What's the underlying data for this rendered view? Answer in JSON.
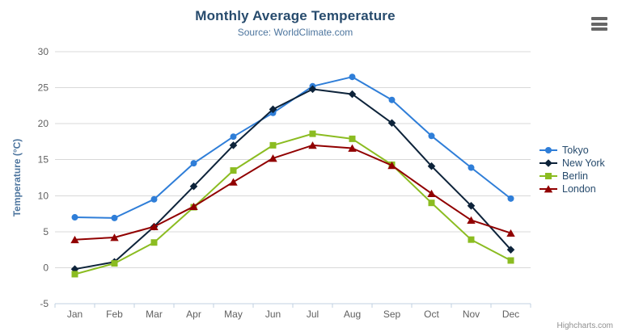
{
  "title": "Monthly Average Temperature",
  "subtitle": "Source: WorldClimate.com",
  "credits": "Highcharts.com",
  "icons": {
    "export_menu": "hamburger-icon"
  },
  "colors": {
    "title": "#274b6d",
    "subtitle": "#4d759e",
    "axis_labels": "#606060",
    "gridline": "#d8d8d8",
    "axis_line": "#c0d0e0",
    "credits": "#909090",
    "menu_icon": "#666666"
  },
  "chart_data": {
    "type": "line",
    "title": "Monthly Average Temperature",
    "subtitle": "Source: WorldClimate.com",
    "categories": [
      "Jan",
      "Feb",
      "Mar",
      "Apr",
      "May",
      "Jun",
      "Jul",
      "Aug",
      "Sep",
      "Oct",
      "Nov",
      "Dec"
    ],
    "series": [
      {
        "name": "Tokyo",
        "color": "#2f7ed8",
        "marker": "circle",
        "values": [
          7.0,
          6.9,
          9.5,
          14.5,
          18.2,
          21.5,
          25.2,
          26.5,
          23.3,
          18.3,
          13.9,
          9.6
        ]
      },
      {
        "name": "New York",
        "color": "#0d233a",
        "marker": "diamond",
        "values": [
          -0.2,
          0.8,
          5.7,
          11.3,
          17.0,
          22.0,
          24.8,
          24.1,
          20.1,
          14.1,
          8.6,
          2.5
        ]
      },
      {
        "name": "Berlin",
        "color": "#8bbc21",
        "marker": "square",
        "values": [
          -0.9,
          0.6,
          3.5,
          8.4,
          13.5,
          17.0,
          18.6,
          17.9,
          14.3,
          9.0,
          3.9,
          1.0
        ]
      },
      {
        "name": "London",
        "color": "#910000",
        "marker": "triangle",
        "values": [
          3.9,
          4.2,
          5.7,
          8.5,
          11.9,
          15.2,
          17.0,
          16.6,
          14.2,
          10.3,
          6.6,
          4.8
        ]
      }
    ],
    "xlabel": "",
    "ylabel": "Temperature (°C)",
    "ylim": [
      -5,
      30
    ],
    "ytick_step": 5,
    "grid": true,
    "legend_position": "right"
  }
}
